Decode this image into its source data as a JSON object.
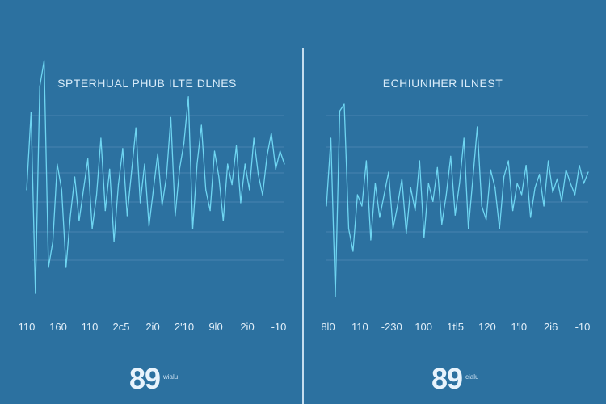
{
  "colors": {
    "background": "#2c71a0",
    "line": "#6fd6f2",
    "grid": "#5e95bd",
    "text": "#e2eff9"
  },
  "chart_data": [
    {
      "type": "line",
      "title": "SPTERHUAL PHUB ILTE DLNES",
      "x_tick_labels": [
        "110",
        "160",
        "110",
        "2c5",
        "2i0",
        "2'10",
        "9l0",
        "2i0",
        "-10"
      ],
      "grid": true,
      "series": [
        {
          "values": [
            0.5,
            0.8,
            0.1,
            0.9,
            1.0,
            0.2,
            0.3,
            0.6,
            0.5,
            0.2,
            0.4,
            0.55,
            0.38,
            0.5,
            0.62,
            0.35,
            0.48,
            0.7,
            0.42,
            0.58,
            0.3,
            0.52,
            0.66,
            0.4,
            0.57,
            0.74,
            0.45,
            0.6,
            0.36,
            0.5,
            0.64,
            0.44,
            0.55,
            0.78,
            0.4,
            0.58,
            0.68,
            0.86,
            0.35,
            0.6,
            0.75,
            0.5,
            0.42,
            0.65,
            0.55,
            0.38,
            0.6,
            0.52,
            0.67,
            0.45,
            0.6,
            0.5,
            0.7,
            0.56,
            0.48,
            0.63,
            0.72,
            0.58,
            0.65,
            0.6
          ]
        }
      ],
      "big_number": "89",
      "big_number_caption": "wialu"
    },
    {
      "type": "line",
      "title": "ECHIUNIHER ILNEST",
      "x_tick_labels": [
        "8l0",
        "110",
        "-230",
        "100",
        "1tl5",
        "120",
        "1'l0",
        "2i6",
        "-10"
      ],
      "grid": true,
      "series": [
        {
          "values": [
            0.5,
            0.8,
            0.1,
            0.92,
            0.95,
            0.4,
            0.3,
            0.55,
            0.5,
            0.7,
            0.35,
            0.6,
            0.45,
            0.55,
            0.65,
            0.4,
            0.5,
            0.62,
            0.38,
            0.58,
            0.48,
            0.7,
            0.36,
            0.6,
            0.52,
            0.67,
            0.42,
            0.55,
            0.72,
            0.46,
            0.6,
            0.8,
            0.4,
            0.62,
            0.85,
            0.5,
            0.44,
            0.66,
            0.58,
            0.4,
            0.63,
            0.7,
            0.48,
            0.6,
            0.55,
            0.68,
            0.45,
            0.58,
            0.64,
            0.5,
            0.7,
            0.56,
            0.62,
            0.52,
            0.66,
            0.6,
            0.55,
            0.68,
            0.6,
            0.65
          ]
        }
      ],
      "big_number": "89",
      "big_number_caption": "cialu"
    }
  ]
}
